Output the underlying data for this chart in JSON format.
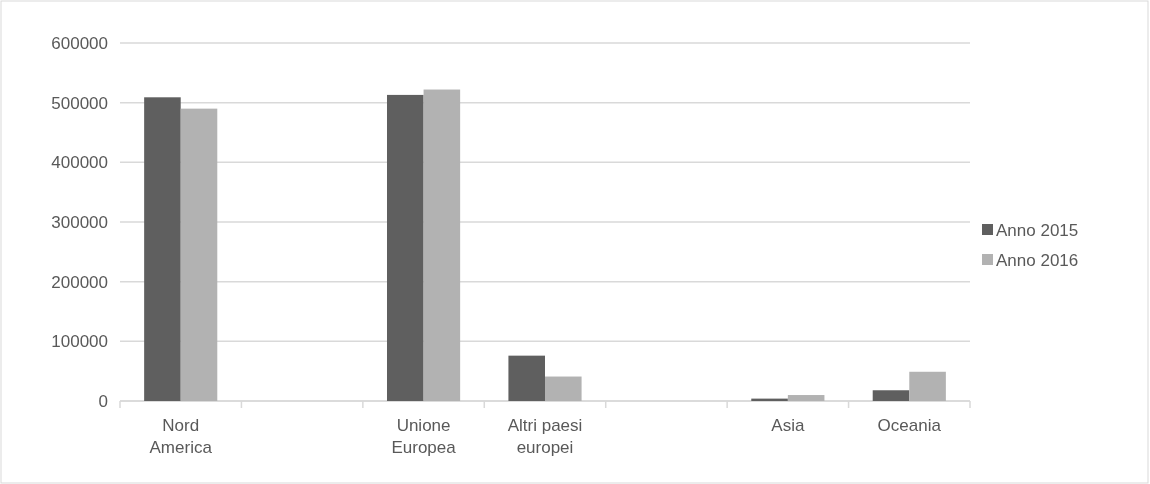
{
  "chart_data": {
    "type": "bar",
    "categories": [
      "Nord America",
      null,
      "Unione Europea",
      "Altri paesi europei",
      null,
      "Asia",
      "Oceania"
    ],
    "series": [
      {
        "name": "Anno 2015",
        "color": "#5f5f5f",
        "values": [
          509000,
          null,
          513000,
          76000,
          null,
          4000,
          18000
        ]
      },
      {
        "name": "Anno 2016",
        "color": "#b2b2b2",
        "values": [
          490000,
          null,
          522000,
          41000,
          null,
          10000,
          49000
        ]
      }
    ],
    "ylim": [
      0,
      600000
    ],
    "yticks": [
      0,
      100000,
      200000,
      300000,
      400000,
      500000,
      600000
    ],
    "grid": "y",
    "legend": "right"
  }
}
